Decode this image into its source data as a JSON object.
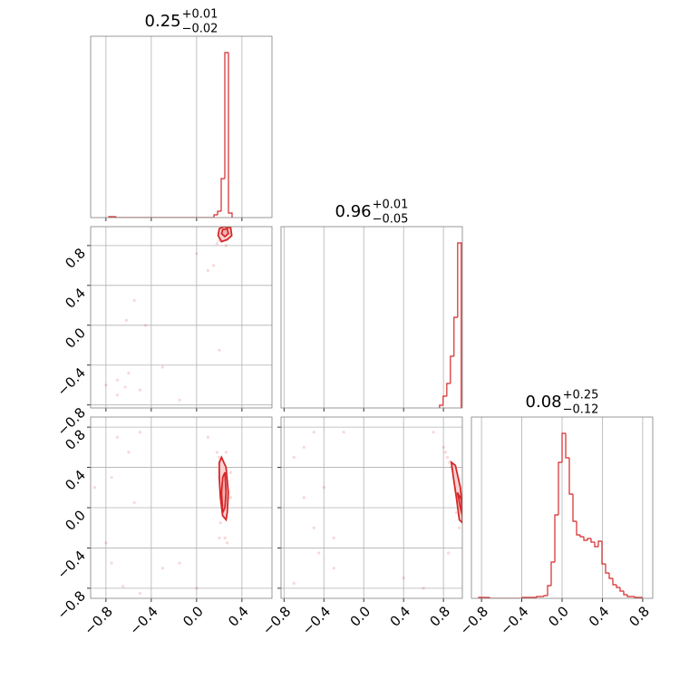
{
  "chart_data": {
    "type": "corner",
    "color": "#d62728",
    "grid": true,
    "parameters": [
      {
        "title": {
          "value": "0.25",
          "upper": "+0.01",
          "lower": "−0.02"
        },
        "range": [
          -0.935,
          0.665
        ],
        "ticks": [
          {
            "value": -0.8,
            "label": "−0.8"
          },
          {
            "value": -0.4,
            "label": "−0.4"
          },
          {
            "value": 0,
            "label": "0.0"
          },
          0.4
        ]
      },
      {
        "title": {
          "value": "0.96",
          "upper": "+0.01",
          "lower": "−0.05"
        },
        "range": [
          -0.83,
          0.99
        ],
        "ticks": [
          {
            "value": -0.8,
            "label": "−0.8"
          },
          {
            "value": -0.4,
            "label": "−0.4"
          },
          {
            "value": 0,
            "label": "0.0"
          },
          0.4,
          0.8
        ]
      },
      {
        "title": {
          "value": "0.08",
          "upper": "+0.25",
          "lower": "−0.12"
        },
        "range": [
          -0.9,
          0.9
        ],
        "ticks": [
          {
            "value": -0.8,
            "label": "−0.8"
          },
          {
            "value": -0.4,
            "label": "−0.4"
          },
          {
            "value": 0,
            "label": "0.0"
          },
          0.4,
          0.8
        ]
      }
    ],
    "histograms": [
      {
        "ylim": [
          0,
          200
        ],
        "bins": [
          -0.775,
          -0.743,
          -0.711,
          -0.679,
          -0.647,
          -0.615,
          -0.583,
          -0.551,
          -0.519,
          -0.487,
          -0.455,
          -0.423,
          -0.391,
          -0.359,
          -0.327,
          -0.295,
          -0.263,
          -0.231,
          -0.199,
          -0.167,
          -0.135,
          -0.103,
          -0.071,
          -0.039,
          -0.007,
          0.025,
          0.057,
          0.089,
          0.121,
          0.153,
          0.185,
          0.217,
          0.249,
          0.281,
          0.313
        ],
        "counts": [
          1,
          1,
          0,
          0,
          0,
          0,
          0,
          0,
          0,
          0,
          0,
          0,
          0,
          0,
          0,
          0,
          0,
          0,
          0,
          0,
          0,
          0,
          0,
          0,
          0,
          0,
          0,
          0,
          0,
          3,
          7,
          43,
          182,
          5
        ]
      },
      {
        "ylim": [
          0,
          200
        ],
        "bins": [
          0.761,
          0.797,
          0.834,
          0.87,
          0.906,
          0.943,
          0.979
        ],
        "counts": [
          3,
          13,
          27,
          57,
          100,
          182
        ]
      },
      {
        "ylim": [
          0,
          200
        ],
        "bins": [
          -0.828,
          -0.792,
          -0.756,
          -0.72,
          -0.684,
          -0.648,
          -0.612,
          -0.576,
          -0.54,
          -0.504,
          -0.468,
          -0.432,
          -0.396,
          -0.36,
          -0.324,
          -0.288,
          -0.252,
          -0.216,
          -0.18,
          -0.144,
          -0.108,
          -0.072,
          -0.036,
          0,
          0.036,
          0.072,
          0.108,
          0.144,
          0.18,
          0.216,
          0.252,
          0.288,
          0.324,
          0.36,
          0.396,
          0.432,
          0.468,
          0.504,
          0.54,
          0.576,
          0.612,
          0.648,
          0.684,
          0.72,
          0.756,
          0.792
        ],
        "counts": [
          1,
          1,
          1,
          0,
          0,
          0,
          0,
          0,
          0,
          0,
          0,
          0,
          1,
          1,
          1,
          1,
          2,
          2,
          3,
          14,
          40,
          92,
          150,
          182,
          155,
          115,
          85,
          70,
          68,
          64,
          66,
          62,
          57,
          63,
          38,
          28,
          22,
          15,
          12,
          8,
          4,
          2,
          2,
          1,
          1
        ]
      }
    ],
    "pairs": [
      {
        "points": {
          "x": [
            -0.63,
            -0.7,
            -0.6,
            -0.45,
            -0.62,
            -0.55,
            -0.3,
            -0.15,
            0.2,
            0.0,
            -0.7,
            -0.5,
            -0.8,
            0.15,
            0.1,
            0.2,
            0.22,
            0.25,
            0.28,
            0.24,
            0.3,
            0.18,
            0.26,
            0.23,
            0.27
          ],
          "y": [
            -0.62,
            -0.55,
            -0.48,
            0.0,
            0.05,
            0.25,
            -0.42,
            -0.75,
            -0.25,
            0.72,
            -0.7,
            -0.65,
            -0.6,
            0.6,
            0.55,
            0.85,
            0.9,
            0.95,
            0.92,
            0.88,
            0.96,
            0.82,
            0.8,
            0.97,
            0.86
          ]
        },
        "contours": [
          {
            "x": [
              0.2,
              0.24,
              0.3,
              0.31,
              0.27,
              0.22,
              0.19
            ],
            "y": [
              0.97,
              0.99,
              0.98,
              0.9,
              0.86,
              0.84,
              0.9
            ]
          },
          {
            "x": [
              0.23,
              0.27,
              0.28,
              0.25,
              0.22
            ],
            "y": [
              0.96,
              0.97,
              0.92,
              0.89,
              0.92
            ]
          }
        ]
      },
      {
        "points": {
          "x": [
            -0.7,
            -0.6,
            -0.75,
            -0.5,
            -0.55,
            -0.8,
            -0.75,
            -0.65,
            -0.5,
            -0.3,
            -0.15,
            0.0,
            -0.9,
            0.1,
            0.2,
            0.18,
            0.2,
            0.22,
            0.26,
            0.3,
            0.25,
            0.27,
            0.2,
            0.3,
            0.21
          ],
          "y": [
            0.7,
            0.55,
            0.3,
            0.75,
            0.05,
            -0.35,
            -0.55,
            -0.78,
            -0.85,
            -0.6,
            -0.55,
            -0.8,
            0.2,
            0.7,
            -0.3,
            0.55,
            0.5,
            0.45,
            0.55,
            0.35,
            -0.3,
            -0.35,
            0.3,
            0.1,
            -0.15
          ]
        },
        "contours": [
          {
            "x": [
              0.2,
              0.22,
              0.26,
              0.28,
              0.27,
              0.26,
              0.23,
              0.21,
              0.2
            ],
            "y": [
              0.45,
              0.5,
              0.4,
              0.15,
              -0.05,
              -0.12,
              -0.08,
              0.1,
              0.3
            ]
          },
          {
            "x": [
              0.23,
              0.25,
              0.26,
              0.25,
              0.23,
              0.22
            ],
            "y": [
              0.3,
              0.35,
              0.15,
              0.0,
              -0.05,
              0.15
            ]
          }
        ]
      },
      {
        "points": {
          "x": [
            -0.6,
            -0.5,
            -0.7,
            -0.4,
            -0.45,
            -0.6,
            -0.3,
            -0.5,
            -0.2,
            0.6,
            -0.7,
            0.4,
            0.85,
            0.7,
            -0.3,
            0.8,
            0.84,
            0.88,
            0.9,
            0.86,
            0.92,
            0.95,
            0.93,
            0.96,
            0.82
          ],
          "y": [
            0.6,
            0.75,
            0.5,
            0.2,
            -0.45,
            0.1,
            -0.6,
            -0.2,
            0.75,
            -0.8,
            -0.75,
            -0.7,
            -0.45,
            0.75,
            -0.3,
            0.6,
            0.5,
            0.4,
            0.35,
            0.45,
            0.2,
            0.1,
            -0.05,
            -0.2,
            0.55
          ]
        },
        "contours": [
          {
            "x": [
              0.88,
              0.92,
              0.97,
              0.99,
              0.99,
              0.96,
              0.93,
              0.9
            ],
            "y": [
              0.45,
              0.42,
              0.2,
              0.0,
              -0.15,
              -0.12,
              0.1,
              0.3
            ]
          },
          {
            "x": [
              0.94,
              0.98,
              0.99,
              0.97
            ],
            "y": [
              0.15,
              0.08,
              -0.08,
              0.0
            ]
          }
        ]
      }
    ]
  }
}
